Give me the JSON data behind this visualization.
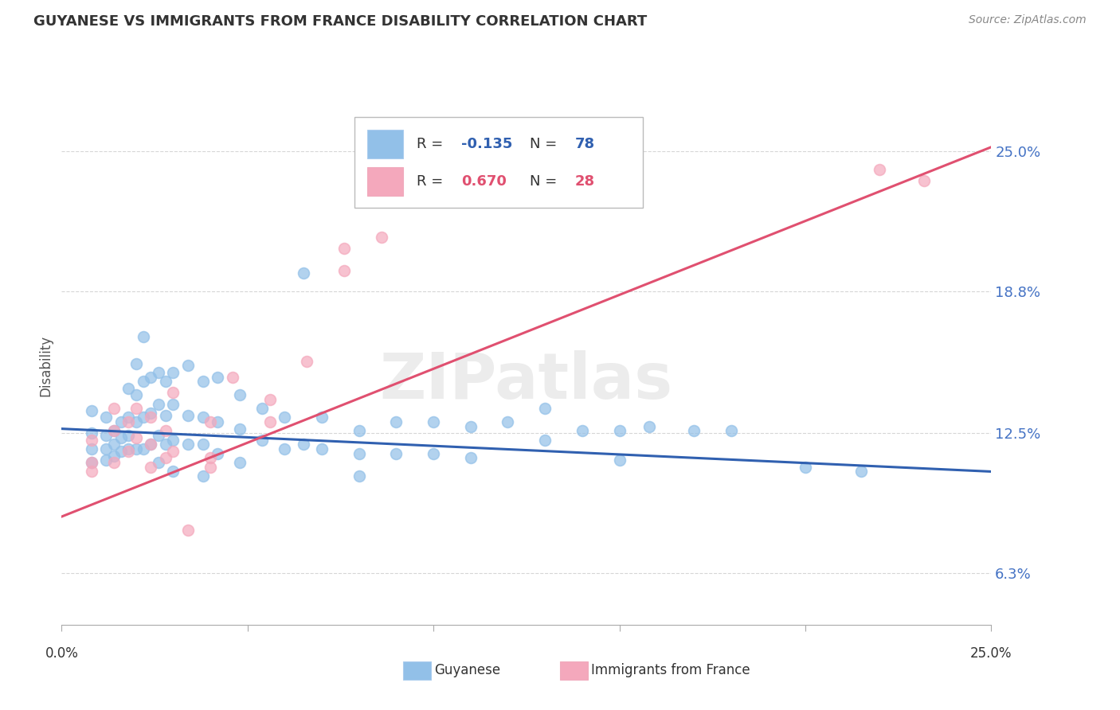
{
  "title": "GUYANESE VS IMMIGRANTS FROM FRANCE DISABILITY CORRELATION CHART",
  "source": "Source: ZipAtlas.com",
  "ylabel": "Disability",
  "xlim": [
    0.0,
    0.25
  ],
  "ylim": [
    0.04,
    0.27
  ],
  "yticks": [
    0.063,
    0.125,
    0.188,
    0.25
  ],
  "ytick_labels": [
    "6.3%",
    "12.5%",
    "18.8%",
    "25.0%"
  ],
  "xtick_positions": [
    0.0,
    0.05,
    0.1,
    0.15,
    0.2,
    0.25
  ],
  "watermark_text": "ZIPatlas",
  "blue_color": "#92c0e8",
  "pink_color": "#f4a8bc",
  "blue_line_color": "#3060b0",
  "pink_line_color": "#e05070",
  "blue_line_start_y": 0.127,
  "blue_line_end_y": 0.108,
  "pink_line_start_y": 0.088,
  "pink_line_end_y": 0.252,
  "blue_scatter": [
    [
      0.008,
      0.135
    ],
    [
      0.008,
      0.125
    ],
    [
      0.008,
      0.118
    ],
    [
      0.008,
      0.112
    ],
    [
      0.012,
      0.132
    ],
    [
      0.012,
      0.124
    ],
    [
      0.012,
      0.118
    ],
    [
      0.012,
      0.113
    ],
    [
      0.014,
      0.126
    ],
    [
      0.014,
      0.12
    ],
    [
      0.014,
      0.115
    ],
    [
      0.016,
      0.13
    ],
    [
      0.016,
      0.123
    ],
    [
      0.016,
      0.117
    ],
    [
      0.018,
      0.145
    ],
    [
      0.018,
      0.132
    ],
    [
      0.018,
      0.124
    ],
    [
      0.018,
      0.118
    ],
    [
      0.02,
      0.156
    ],
    [
      0.02,
      0.142
    ],
    [
      0.02,
      0.13
    ],
    [
      0.02,
      0.118
    ],
    [
      0.022,
      0.168
    ],
    [
      0.022,
      0.148
    ],
    [
      0.022,
      0.132
    ],
    [
      0.022,
      0.118
    ],
    [
      0.024,
      0.15
    ],
    [
      0.024,
      0.134
    ],
    [
      0.024,
      0.12
    ],
    [
      0.026,
      0.152
    ],
    [
      0.026,
      0.138
    ],
    [
      0.026,
      0.124
    ],
    [
      0.026,
      0.112
    ],
    [
      0.028,
      0.148
    ],
    [
      0.028,
      0.133
    ],
    [
      0.028,
      0.12
    ],
    [
      0.03,
      0.152
    ],
    [
      0.03,
      0.138
    ],
    [
      0.03,
      0.122
    ],
    [
      0.03,
      0.108
    ],
    [
      0.034,
      0.155
    ],
    [
      0.034,
      0.133
    ],
    [
      0.034,
      0.12
    ],
    [
      0.038,
      0.148
    ],
    [
      0.038,
      0.132
    ],
    [
      0.038,
      0.12
    ],
    [
      0.038,
      0.106
    ],
    [
      0.042,
      0.15
    ],
    [
      0.042,
      0.13
    ],
    [
      0.042,
      0.116
    ],
    [
      0.048,
      0.142
    ],
    [
      0.048,
      0.127
    ],
    [
      0.048,
      0.112
    ],
    [
      0.054,
      0.136
    ],
    [
      0.054,
      0.122
    ],
    [
      0.06,
      0.132
    ],
    [
      0.06,
      0.118
    ],
    [
      0.065,
      0.196
    ],
    [
      0.065,
      0.12
    ],
    [
      0.07,
      0.132
    ],
    [
      0.07,
      0.118
    ],
    [
      0.08,
      0.126
    ],
    [
      0.08,
      0.116
    ],
    [
      0.08,
      0.106
    ],
    [
      0.09,
      0.13
    ],
    [
      0.09,
      0.116
    ],
    [
      0.1,
      0.13
    ],
    [
      0.1,
      0.116
    ],
    [
      0.11,
      0.128
    ],
    [
      0.11,
      0.114
    ],
    [
      0.12,
      0.13
    ],
    [
      0.13,
      0.136
    ],
    [
      0.13,
      0.122
    ],
    [
      0.14,
      0.126
    ],
    [
      0.15,
      0.126
    ],
    [
      0.15,
      0.113
    ],
    [
      0.158,
      0.128
    ],
    [
      0.17,
      0.126
    ],
    [
      0.18,
      0.126
    ],
    [
      0.2,
      0.11
    ],
    [
      0.215,
      0.108
    ]
  ],
  "pink_scatter": [
    [
      0.008,
      0.122
    ],
    [
      0.008,
      0.112
    ],
    [
      0.008,
      0.108
    ],
    [
      0.014,
      0.136
    ],
    [
      0.014,
      0.126
    ],
    [
      0.014,
      0.112
    ],
    [
      0.018,
      0.13
    ],
    [
      0.018,
      0.117
    ],
    [
      0.02,
      0.136
    ],
    [
      0.02,
      0.123
    ],
    [
      0.024,
      0.132
    ],
    [
      0.024,
      0.12
    ],
    [
      0.024,
      0.11
    ],
    [
      0.028,
      0.126
    ],
    [
      0.028,
      0.114
    ],
    [
      0.03,
      0.143
    ],
    [
      0.03,
      0.117
    ],
    [
      0.034,
      0.082
    ],
    [
      0.04,
      0.13
    ],
    [
      0.04,
      0.114
    ],
    [
      0.04,
      0.11
    ],
    [
      0.046,
      0.15
    ],
    [
      0.056,
      0.14
    ],
    [
      0.056,
      0.13
    ],
    [
      0.066,
      0.157
    ],
    [
      0.076,
      0.207
    ],
    [
      0.076,
      0.197
    ],
    [
      0.086,
      0.212
    ],
    [
      0.22,
      0.242
    ],
    [
      0.232,
      0.237
    ]
  ],
  "background_color": "#ffffff",
  "grid_color": "#cccccc"
}
